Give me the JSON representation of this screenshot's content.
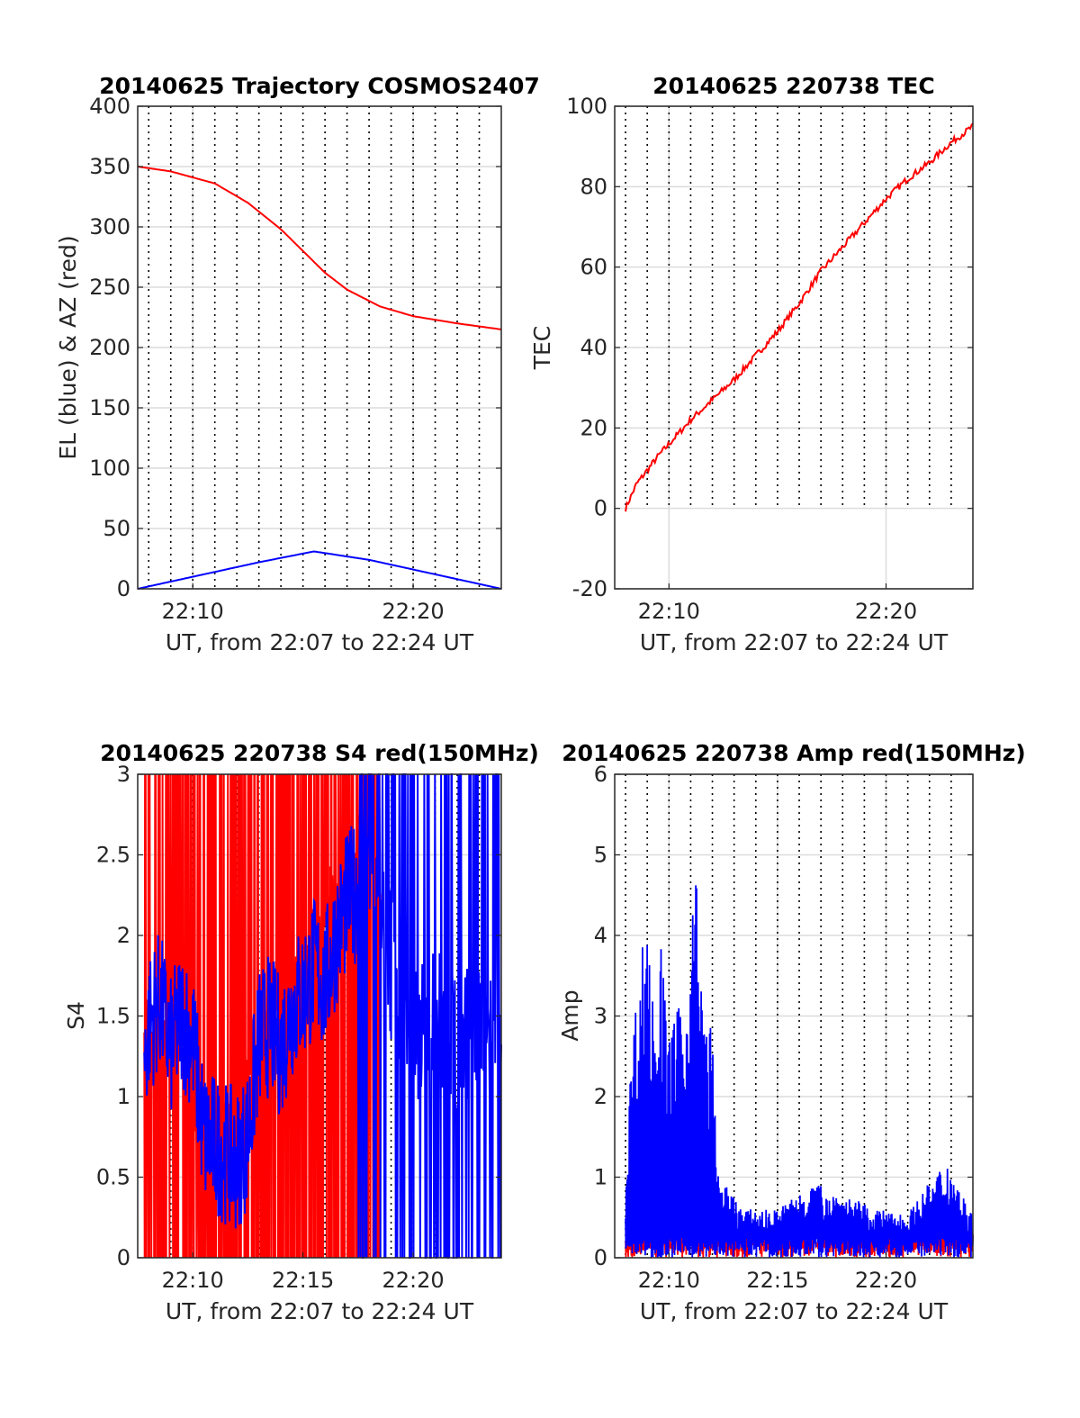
{
  "colors": {
    "red": "#ff0000",
    "blue": "#0000ff"
  },
  "chart_data": [
    {
      "type": "line",
      "title": "20140625 Trajectory COSMOS2407",
      "xlabel": "UT, from 22:07 to 22:24 UT",
      "ylabel": "EL (blue) & AZ (red)",
      "xlim": [
        7.5,
        24
      ],
      "xtick_values": [
        10,
        20
      ],
      "xticks": [
        "22:10",
        "22:20"
      ],
      "ylim": [
        0,
        400
      ],
      "yticks": [
        "0",
        "50",
        "100",
        "150",
        "200",
        "250",
        "300",
        "350",
        "400"
      ],
      "grid": true,
      "series": [
        {
          "color": "red",
          "x": [
            7.5,
            9,
            11,
            12.5,
            14,
            15,
            16,
            17,
            18.5,
            20,
            22,
            24
          ],
          "y": [
            350,
            346,
            336,
            320,
            298,
            280,
            262,
            248,
            234,
            226,
            220,
            215
          ]
        },
        {
          "color": "blue",
          "x": [
            7.5,
            10,
            13,
            15.5,
            18,
            21,
            24
          ],
          "y": [
            0,
            10,
            22,
            31,
            24,
            12,
            0
          ]
        }
      ]
    },
    {
      "type": "line",
      "title": "20140625 220738 TEC",
      "xlabel": "UT, from 22:07 to 22:24 UT",
      "ylabel": "TEC",
      "xlim": [
        7.5,
        24
      ],
      "xtick_values": [
        10,
        20
      ],
      "xticks": [
        "22:10",
        "22:20"
      ],
      "ylim": [
        -20,
        100
      ],
      "yticks": [
        "-20",
        "0",
        "20",
        "40",
        "60",
        "80",
        "100"
      ],
      "grid": true,
      "series": [
        {
          "color": "red",
          "x": [
            8,
            8.5,
            9.5,
            10.5,
            11,
            12,
            13,
            14,
            15,
            16,
            17,
            18,
            19,
            20,
            21,
            22,
            23,
            24
          ],
          "y": [
            0,
            6,
            13,
            19,
            22,
            27,
            32,
            38,
            44,
            51,
            59,
            65,
            71,
            77,
            82,
            86,
            91,
            95
          ]
        }
      ]
    },
    {
      "type": "line",
      "title": "20140625 220738 S4 red(150MHz)",
      "xlabel": "UT, from 22:07 to 22:24 UT",
      "ylabel": "S4",
      "xlim": [
        7.5,
        24
      ],
      "xtick_values": [
        10,
        15,
        20
      ],
      "xticks": [
        "22:10",
        "22:15",
        "22:20"
      ],
      "ylim": [
        0,
        3
      ],
      "yticks": [
        "0",
        "0.5",
        "1",
        "1.5",
        "2",
        "2.5",
        "3"
      ],
      "grid": true,
      "series": [
        {
          "color": "red",
          "x": [
            7.8,
            9.5,
            10,
            11,
            12,
            12.5,
            13,
            14,
            15,
            15.5,
            16,
            17,
            17.5,
            18,
            18.5
          ],
          "y": [
            1.3,
            1.4,
            0.8,
            0.7,
            0.65,
            1.1,
            1.3,
            1.6,
            1.8,
            1.9,
            2.2,
            2.3,
            2.5,
            2.6,
            2.4
          ]
        },
        {
          "color": "blue",
          "x": [
            7.8,
            8,
            8.5,
            9,
            9.5,
            10,
            10.5,
            11,
            11.5,
            12,
            12.5,
            13,
            13.5,
            14,
            14.5,
            15,
            15.5,
            16,
            16.5,
            17,
            17.5,
            18,
            18.5,
            19,
            19.5,
            20,
            21,
            22,
            23,
            24
          ],
          "y": [
            1.2,
            1.45,
            1.6,
            1.3,
            1.5,
            1.35,
            0.75,
            0.7,
            0.65,
            0.6,
            0.75,
            1.35,
            1.45,
            1.3,
            1.55,
            1.65,
            1.8,
            1.7,
            2.0,
            2.2,
            2.3,
            2.5,
            2.1,
            1.8,
            1.5,
            1.4,
            1.5,
            1.3,
            1.5,
            1.4
          ]
        }
      ]
    },
    {
      "type": "line",
      "title": "20140625 220738 Amp red(150MHz)",
      "xlabel": "UT, from 22:07 to 22:24 UT",
      "ylabel": "Amp",
      "xlim": [
        7.5,
        24
      ],
      "xtick_values": [
        10,
        15,
        20
      ],
      "xticks": [
        "22:10",
        "22:15",
        "22:20"
      ],
      "ylim": [
        0,
        6
      ],
      "yticks": [
        "0",
        "1",
        "2",
        "3",
        "4",
        "5",
        "6"
      ],
      "grid": true,
      "series": [
        {
          "color": "red",
          "x": [
            8,
            10,
            12,
            14,
            16,
            18,
            20,
            21,
            22,
            22.5,
            23,
            24
          ],
          "y": [
            0.3,
            0.3,
            0.35,
            0.3,
            0.3,
            0.3,
            0.3,
            0.35,
            0.45,
            0.5,
            0.45,
            0.4
          ]
        },
        {
          "color": "blue",
          "x": [
            8,
            8.3,
            8.6,
            9,
            9.3,
            9.6,
            10,
            10.4,
            10.8,
            11.2,
            11.6,
            12,
            12.2,
            12.6,
            13.5,
            15,
            16.5,
            18,
            19.5,
            21,
            22.8,
            24
          ],
          "y": [
            0.95,
            2.85,
            3.45,
            4.6,
            3.0,
            4.0,
            2.8,
            3.1,
            3.25,
            5.1,
            3.0,
            2.9,
            1.1,
            0.9,
            0.6,
            0.6,
            0.95,
            0.8,
            0.6,
            0.55,
            1.25,
            0.5
          ]
        }
      ]
    }
  ]
}
